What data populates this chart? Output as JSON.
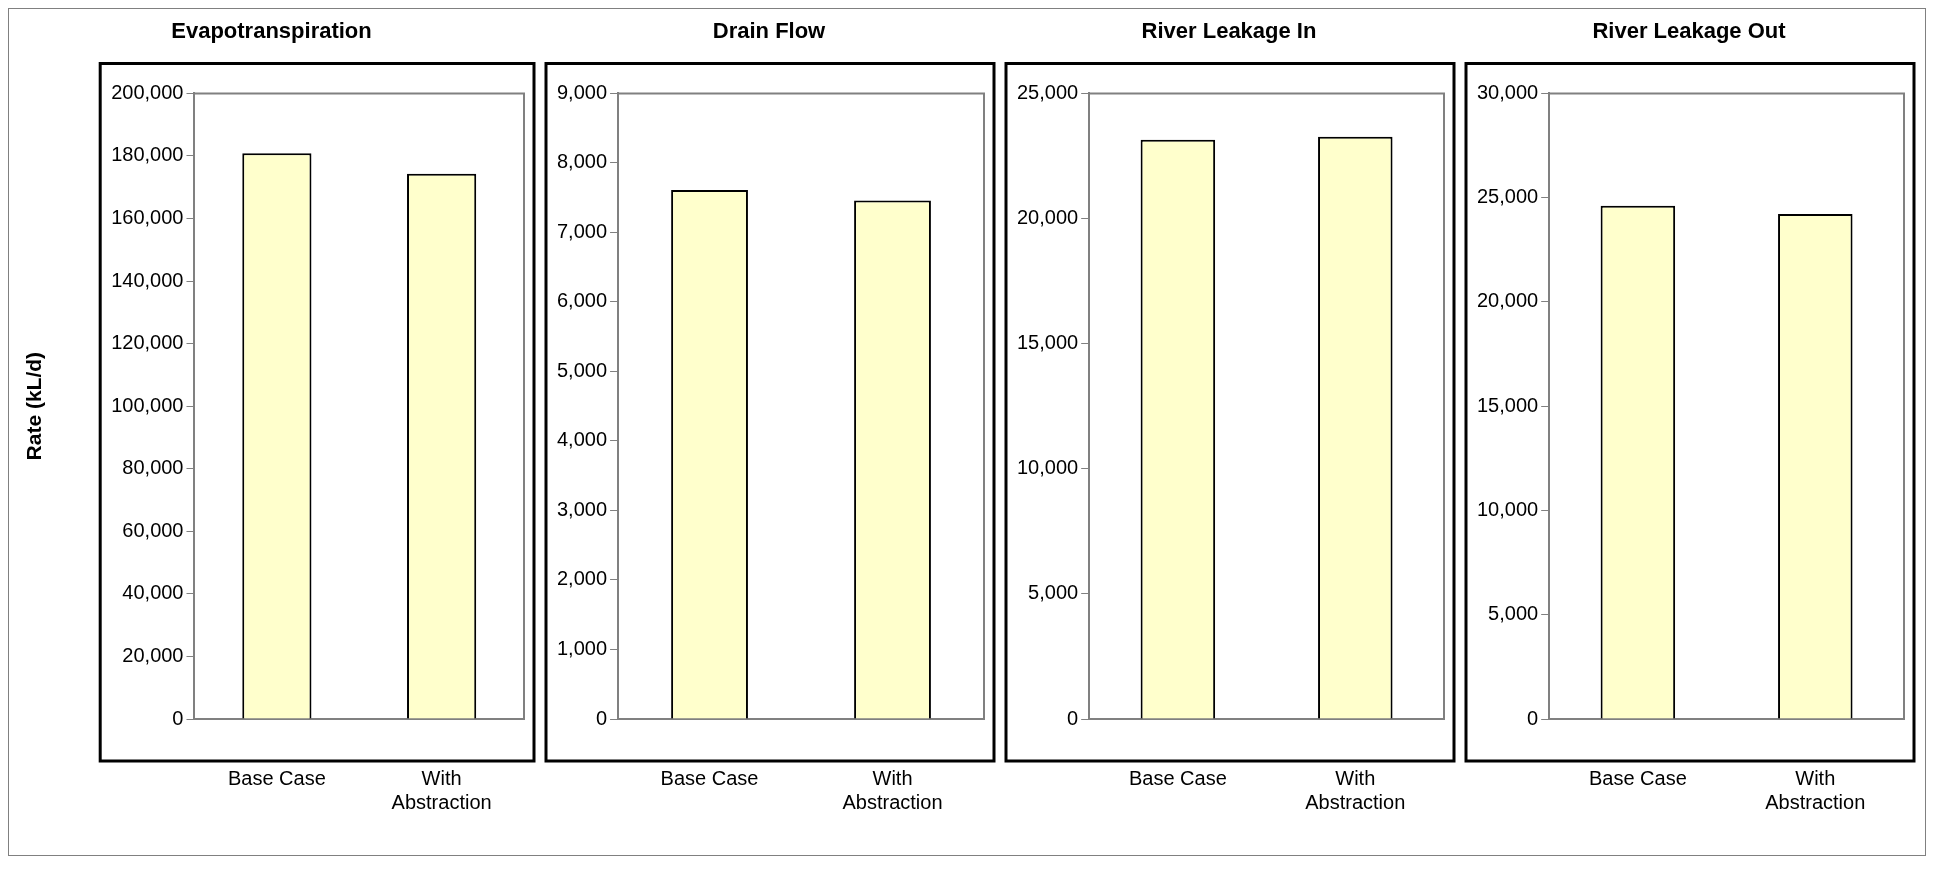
{
  "chart_data": [
    {
      "type": "bar",
      "title": "Evapotranspiration",
      "ylabel": "Rate (kL/d)",
      "categories": [
        "Base Case",
        "With Abstraction"
      ],
      "values": [
        180900,
        174300
      ],
      "color": "#ffffcc",
      "ylim": [
        0,
        200000
      ],
      "yticks": [
        {
          "value": 0,
          "label": "0"
        },
        {
          "value": 20000,
          "label": "20,000"
        },
        {
          "value": 40000,
          "label": "40,000"
        },
        {
          "value": 60000,
          "label": "60,000"
        },
        {
          "value": 80000,
          "label": "80,000"
        },
        {
          "value": 100000,
          "label": "100,000"
        },
        {
          "value": 120000,
          "label": "120,000"
        },
        {
          "value": 140000,
          "label": "140,000"
        },
        {
          "value": 160000,
          "label": "160,000"
        },
        {
          "value": 180000,
          "label": "180,000"
        },
        {
          "value": 200000,
          "label": "200,000"
        }
      ],
      "grid": false,
      "legend": false
    },
    {
      "type": "bar",
      "title": "Drain Flow",
      "categories": [
        "Base Case",
        "With Abstraction"
      ],
      "values": [
        7610,
        7460
      ],
      "color": "#ffffcc",
      "ylim": [
        0,
        9000
      ],
      "yticks": [
        {
          "value": 0,
          "label": "0"
        },
        {
          "value": 1000,
          "label": "1,000"
        },
        {
          "value": 2000,
          "label": "2,000"
        },
        {
          "value": 3000,
          "label": "3,000"
        },
        {
          "value": 4000,
          "label": "4,000"
        },
        {
          "value": 5000,
          "label": "5,000"
        },
        {
          "value": 6000,
          "label": "6,000"
        },
        {
          "value": 7000,
          "label": "7,000"
        },
        {
          "value": 8000,
          "label": "8,000"
        },
        {
          "value": 9000,
          "label": "9,000"
        }
      ],
      "grid": false,
      "legend": false
    },
    {
      "type": "bar",
      "title": "River Leakage In",
      "categories": [
        "Base Case",
        "With Abstraction"
      ],
      "values": [
        23150,
        23270
      ],
      "color": "#ffffcc",
      "ylim": [
        0,
        25000
      ],
      "yticks": [
        {
          "value": 0,
          "label": "0"
        },
        {
          "value": 5000,
          "label": "5,000"
        },
        {
          "value": 10000,
          "label": "10,000"
        },
        {
          "value": 15000,
          "label": "15,000"
        },
        {
          "value": 20000,
          "label": "20,000"
        },
        {
          "value": 25000,
          "label": "25,000"
        }
      ],
      "grid": false,
      "legend": false
    },
    {
      "type": "bar",
      "title": "River Leakage Out",
      "categories": [
        "Base Case",
        "With Abstraction"
      ],
      "values": [
        24610,
        24220
      ],
      "color": "#ffffcc",
      "ylim": [
        0,
        30000
      ],
      "yticks": [
        {
          "value": 0,
          "label": "0"
        },
        {
          "value": 5000,
          "label": "5,000"
        },
        {
          "value": 10000,
          "label": "10,000"
        },
        {
          "value": 15000,
          "label": "15,000"
        },
        {
          "value": 20000,
          "label": "20,000"
        },
        {
          "value": 25000,
          "label": "25,000"
        },
        {
          "value": 30000,
          "label": "30,000"
        }
      ],
      "grid": false,
      "legend": false
    }
  ]
}
